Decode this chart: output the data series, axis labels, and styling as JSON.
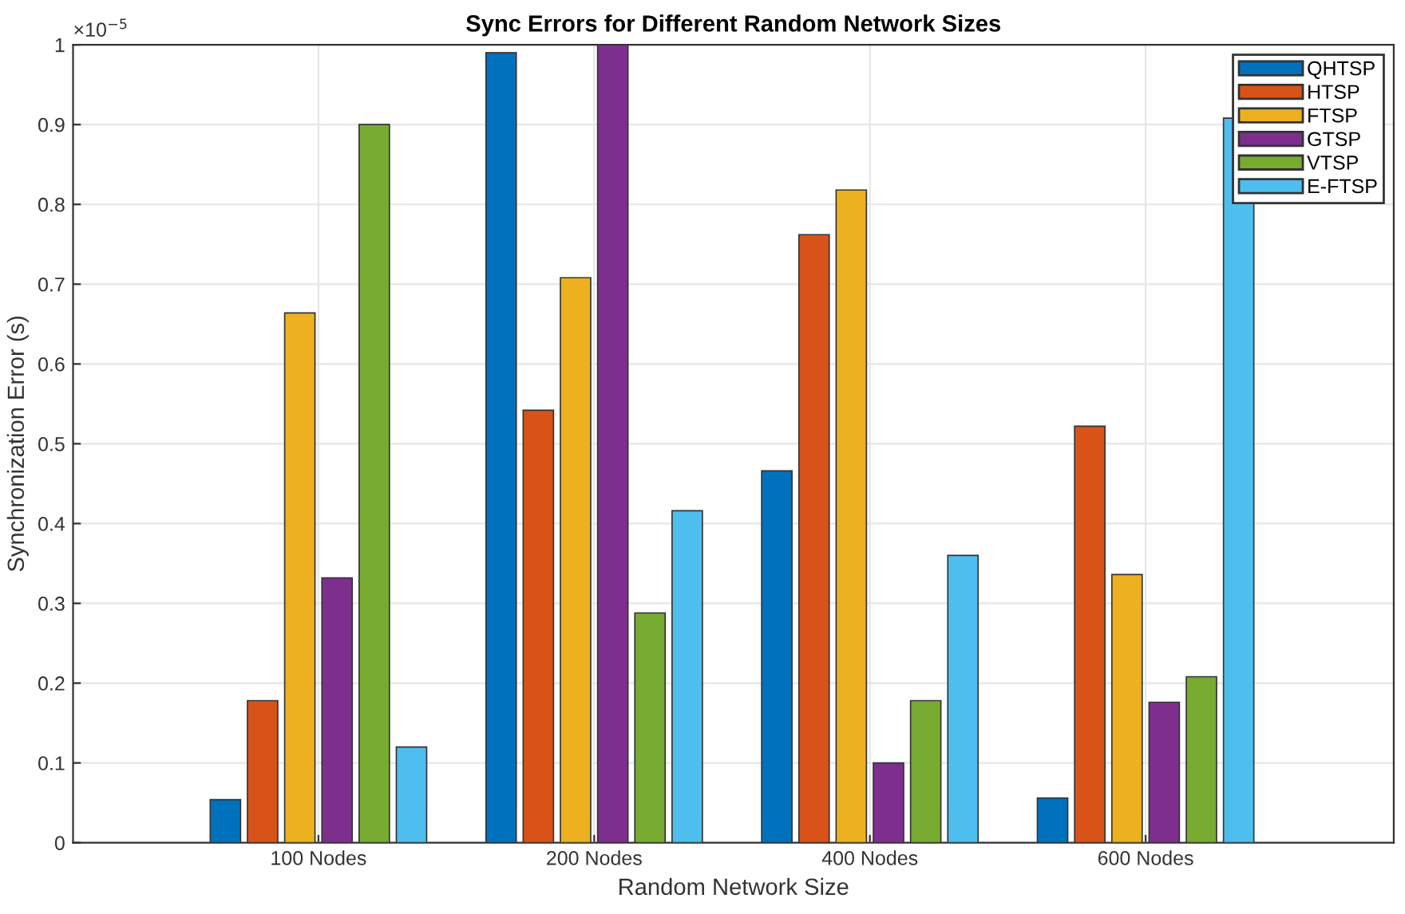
{
  "chart_data": {
    "type": "bar",
    "title": "Sync Errors for Different Random Network Sizes",
    "xlabel": "Random Network Size",
    "ylabel": "Synchronization Error (s)",
    "annotations": [
      "×10$^{−5}$"
    ],
    "categories": [
      "100 Nodes",
      "200 Nodes",
      "400 Nodes",
      "600 Nodes"
    ],
    "series": [
      {
        "name": "QHTSP",
        "color": "#0072bd",
        "values": [
          0.054,
          0.99,
          0.466,
          0.056
        ]
      },
      {
        "name": "HTSP",
        "color": "#d95319",
        "values": [
          0.178,
          0.542,
          0.762,
          0.522
        ]
      },
      {
        "name": "FTSP",
        "color": "#edb120",
        "values": [
          0.664,
          0.708,
          0.818,
          0.336
        ]
      },
      {
        "name": "GTSP",
        "color": "#7e2f8e",
        "values": [
          0.332,
          1.0,
          0.1,
          0.176
        ]
      },
      {
        "name": "VTSP",
        "color": "#77ac30",
        "values": [
          0.9,
          0.288,
          0.178,
          0.208
        ]
      },
      {
        "name": "E-FTSP",
        "color": "#4dbeee",
        "values": [
          0.12,
          0.416,
          0.36,
          0.908
        ]
      }
    ],
    "ylim": [
      0,
      1
    ],
    "yticks": [
      0,
      0.1,
      0.2,
      0.3,
      0.4,
      0.5,
      0.6,
      0.7,
      0.8,
      0.9,
      1
    ],
    "grid": true,
    "legend": "top right"
  }
}
